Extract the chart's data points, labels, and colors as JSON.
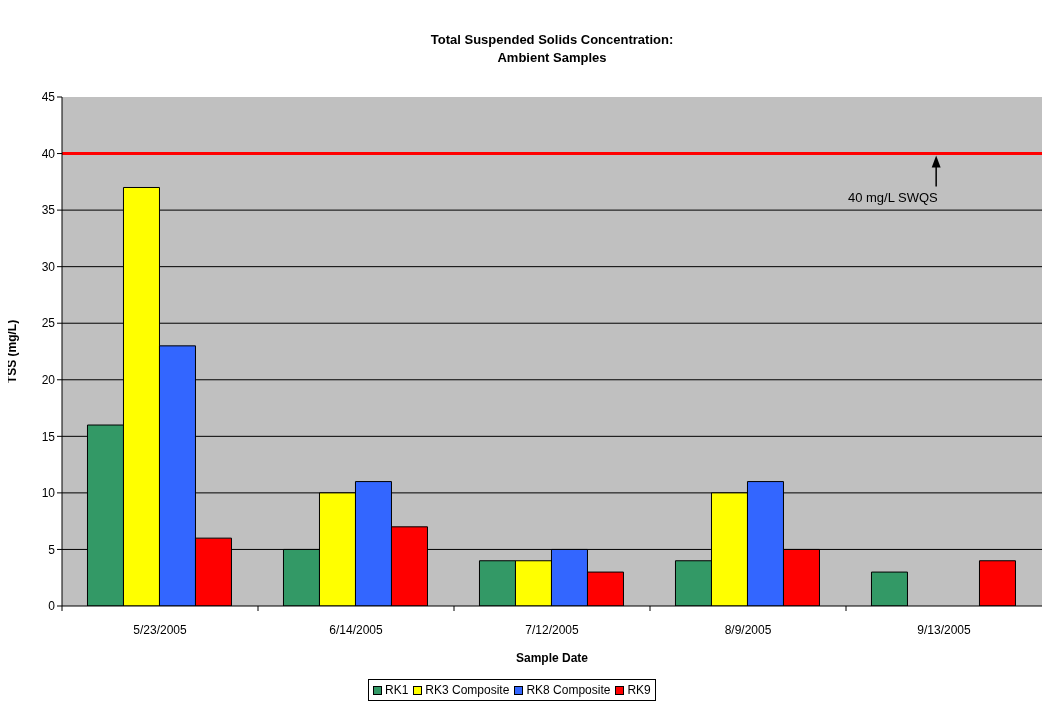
{
  "chart_data": {
    "type": "bar",
    "title": "Total Suspended Solids Concentration: Ambient Samples",
    "xlabel": "Sample Date",
    "ylabel": "TSS (mg/L)",
    "categories": [
      "5/23/2005",
      "6/14/2005",
      "7/12/2005",
      "8/9/2005",
      "9/13/2005"
    ],
    "series": [
      {
        "name": "RK1",
        "color": "#339966",
        "values": [
          16,
          5,
          4,
          4,
          3
        ]
      },
      {
        "name": "RK3 Composite",
        "color": "#ffff00",
        "values": [
          37,
          10,
          4,
          10,
          null
        ]
      },
      {
        "name": "RK8 Composite",
        "color": "#3366ff",
        "values": [
          23,
          11,
          5,
          11,
          null
        ]
      },
      {
        "name": "RK9",
        "color": "#ff0000",
        "values": [
          6,
          7,
          3,
          5,
          4
        ]
      }
    ],
    "ylim": [
      0,
      45
    ],
    "yticks": [
      0,
      5,
      10,
      15,
      20,
      25,
      30,
      35,
      40,
      45
    ],
    "grid": "y",
    "legend": "bottom",
    "ref_lines": [
      {
        "axis": "y",
        "value": 40,
        "label": "40 mg/L SWQS",
        "color": "#ff0000"
      }
    ]
  }
}
